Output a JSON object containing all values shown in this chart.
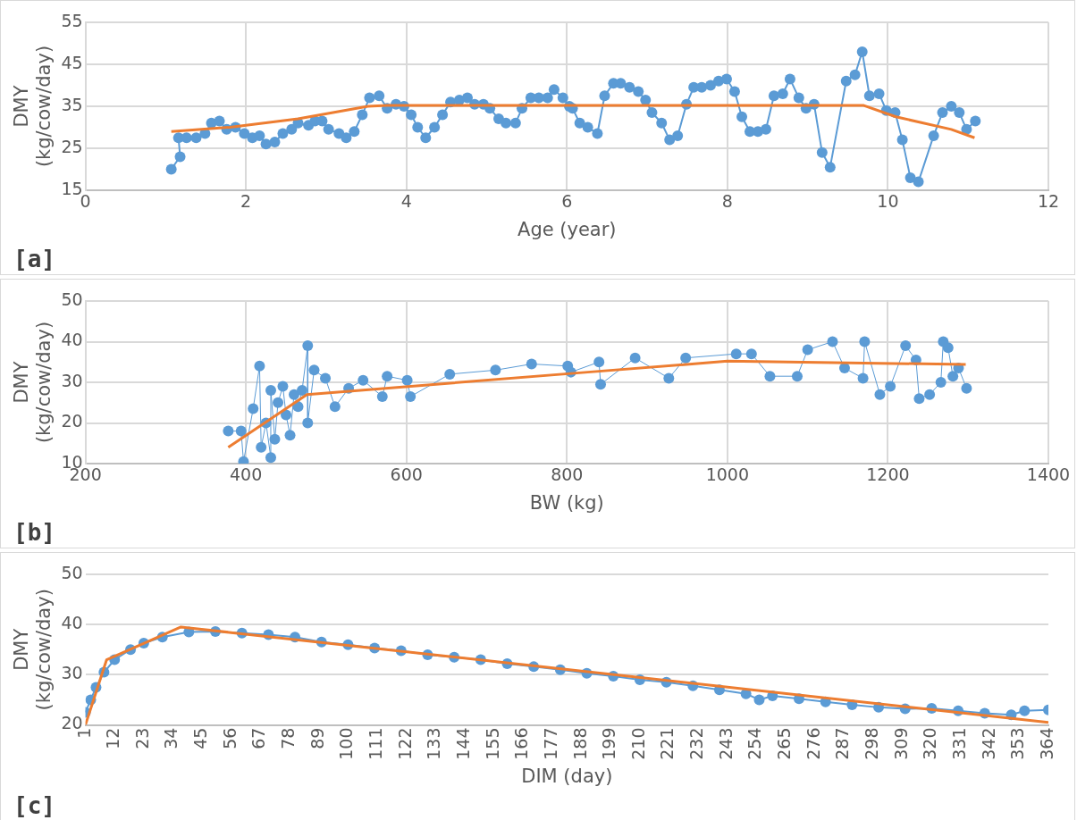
{
  "chart_data": [
    {
      "type": "line",
      "xlabel": "Age (year)",
      "ylabel": "DMY (kg/cow/day)",
      "xlim": [
        0,
        12
      ],
      "xticks": [
        0,
        2,
        4,
        6,
        8,
        10,
        12
      ],
      "ylim": [
        15,
        55
      ],
      "yticks": [
        15,
        25,
        35,
        45,
        55
      ],
      "grid": true,
      "legend": false,
      "annotations": [
        "[a]"
      ],
      "series": [
        {
          "color": "#5b9bd5",
          "marker": "circle",
          "x": [
            1.07,
            1.18,
            1.16,
            1.26,
            1.38,
            1.49,
            1.57,
            1.67,
            1.76,
            1.87,
            1.98,
            2.08,
            2.17,
            2.25,
            2.36,
            2.46,
            2.57,
            2.65,
            2.78,
            2.86,
            2.95,
            3.03,
            3.16,
            3.25,
            3.35,
            3.45,
            3.54,
            3.66,
            3.76,
            3.87,
            3.97,
            4.06,
            4.14,
            4.24,
            4.35,
            4.45,
            4.55,
            4.66,
            4.76,
            4.85,
            4.96,
            5.04,
            5.15,
            5.24,
            5.36,
            5.44,
            5.55,
            5.65,
            5.76,
            5.84,
            5.95,
            6.03,
            6.07,
            6.16,
            6.26,
            6.38,
            6.47,
            6.58,
            6.67,
            6.78,
            6.89,
            6.98,
            7.06,
            7.18,
            7.28,
            7.38,
            7.49,
            7.58,
            7.68,
            7.79,
            7.89,
            7.99,
            8.09,
            8.18,
            8.28,
            8.38,
            8.48,
            8.58,
            8.69,
            8.78,
            8.89,
            8.98,
            9.08,
            9.18,
            9.28,
            9.48,
            9.59,
            9.68,
            9.77,
            9.89,
            9.98,
            10.09,
            10.18,
            10.28,
            10.38,
            10.57,
            10.68,
            10.79,
            10.89,
            10.98,
            11.09
          ],
          "values": [
            20,
            23,
            27.5,
            27.5,
            27.5,
            28.5,
            31,
            31.5,
            29.5,
            30,
            28.5,
            27.5,
            28,
            26,
            26.5,
            28.5,
            29.5,
            31,
            30.5,
            31.5,
            31.5,
            29.5,
            28.5,
            27.5,
            29,
            33,
            37,
            37.5,
            34.5,
            35.5,
            35,
            33,
            30,
            27.5,
            30,
            33,
            36,
            36.5,
            37,
            35.5,
            35.5,
            34.5,
            32,
            31,
            31,
            34.5,
            37,
            37,
            37,
            39,
            37,
            35,
            34.5,
            31,
            30,
            28.5,
            37.5,
            40.5,
            40.5,
            39.5,
            38.5,
            36.5,
            33.5,
            31,
            27,
            28,
            35.5,
            39.5,
            39.5,
            40,
            41,
            41.5,
            38.5,
            32.5,
            29,
            29,
            29.5,
            37.5,
            38,
            41.5,
            37,
            34.5,
            35.5,
            24,
            20.5,
            41,
            42.5,
            48,
            37.5,
            38,
            34,
            33.5,
            27,
            18,
            17,
            28,
            33.5,
            35,
            33.5,
            29.5,
            31.5
          ]
        },
        {
          "color": "#ed7d31",
          "marker": "none",
          "x": [
            1.07,
            1.8,
            2.65,
            3.52,
            3.76,
            9.7,
            10.1,
            10.79,
            11.08
          ],
          "values": [
            29,
            30,
            32,
            35,
            35.2,
            35.2,
            32.5,
            29.5,
            27.5
          ]
        }
      ]
    },
    {
      "type": "line",
      "xlabel": "BW (kg)",
      "ylabel": "DMY (kg/cow/day)",
      "xlim": [
        200,
        1400
      ],
      "xticks": [
        200,
        400,
        600,
        800,
        1000,
        1200,
        1400
      ],
      "ylim": [
        10,
        50
      ],
      "yticks": [
        10,
        20,
        30,
        40,
        50
      ],
      "grid": true,
      "legend": false,
      "annotations": [
        "[b]"
      ],
      "series": [
        {
          "color": "#5b9bd5",
          "marker": "circle",
          "x": [
            378,
            394,
            397,
            409,
            417,
            419,
            425,
            431,
            431,
            436,
            440,
            446,
            450,
            455,
            460,
            465,
            470,
            477,
            477,
            485,
            499,
            511,
            528,
            546,
            570,
            576,
            601,
            605,
            654,
            711,
            756,
            801,
            805,
            840,
            842,
            885,
            927,
            948,
            1011,
            1030,
            1053,
            1087,
            1100,
            1131,
            1146,
            1169,
            1171,
            1190,
            1203,
            1222,
            1235,
            1239,
            1252,
            1266,
            1269,
            1275,
            1281,
            1288,
            1298
          ],
          "values": [
            18,
            18,
            10.5,
            23.5,
            34,
            14,
            20,
            11.5,
            28,
            16,
            25,
            29,
            22,
            17,
            27,
            24,
            28,
            39,
            20,
            33,
            31,
            24,
            28.5,
            30.5,
            26.5,
            31.5,
            30.5,
            26.5,
            32,
            33,
            34.5,
            34,
            32.5,
            35,
            29.5,
            36,
            31,
            36,
            37,
            37,
            31.5,
            31.5,
            38,
            40,
            33.5,
            31,
            40,
            27,
            29,
            39,
            35.5,
            26,
            27,
            30,
            40,
            38.5,
            31.5,
            33.5,
            28.5
          ]
        },
        {
          "color": "#ed7d31",
          "marker": "none",
          "x": [
            378,
            476,
            826,
            1000,
            1297
          ],
          "values": [
            14,
            27,
            32.5,
            35.2,
            34.4
          ]
        }
      ]
    },
    {
      "type": "line",
      "xlabel": "DIM (day)",
      "ylabel": "DMY (kg/cow/day)",
      "xlim": [
        1,
        364
      ],
      "xticks": [
        1,
        12,
        23,
        34,
        45,
        56,
        67,
        78,
        89,
        100,
        111,
        122,
        133,
        144,
        155,
        166,
        177,
        188,
        199,
        210,
        221,
        232,
        243,
        254,
        265,
        276,
        287,
        298,
        309,
        320,
        331,
        342,
        353,
        364
      ],
      "ylim": [
        20,
        50
      ],
      "yticks": [
        20,
        30,
        40,
        50
      ],
      "grid": "y",
      "legend": false,
      "annotations": [
        "[c]"
      ],
      "series": [
        {
          "color": "#5b9bd5",
          "marker": "circle",
          "x": [
            1,
            3,
            5,
            8,
            12,
            18,
            23,
            30,
            40,
            50,
            60,
            70,
            80,
            90,
            100,
            110,
            120,
            130,
            140,
            150,
            160,
            170,
            180,
            190,
            200,
            210,
            220,
            230,
            240,
            250,
            255,
            260,
            270,
            280,
            290,
            300,
            310,
            320,
            330,
            340,
            350,
            355,
            364
          ],
          "values": [
            22.5,
            25,
            27.5,
            30.5,
            33,
            35,
            36.3,
            37.5,
            38.5,
            38.6,
            38.3,
            38,
            37.5,
            36.5,
            36,
            35.3,
            34.8,
            34,
            33.5,
            33,
            32.2,
            31.6,
            31,
            30.3,
            29.7,
            29,
            28.5,
            27.8,
            27,
            26.2,
            25,
            25.8,
            25.2,
            24.6,
            24,
            23.5,
            23.2,
            23.3,
            22.8,
            22.3,
            22,
            22.8,
            23
          ]
        },
        {
          "color": "#ed7d31",
          "marker": "none",
          "x": [
            1,
            9,
            37,
            364
          ],
          "values": [
            20,
            33,
            39.5,
            20.5
          ]
        }
      ]
    }
  ]
}
